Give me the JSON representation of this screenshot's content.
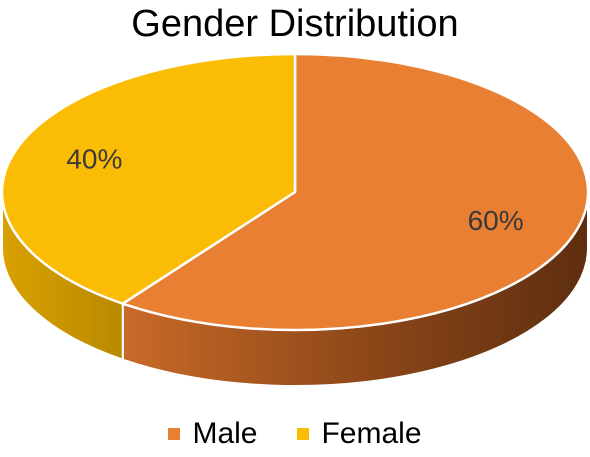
{
  "chart_data": {
    "type": "pie",
    "title": "Gender Distribution",
    "style": "3d",
    "legend_position": "bottom",
    "categories": [
      "Male",
      "Female"
    ],
    "values": [
      60,
      40
    ],
    "labels": [
      "60%",
      "40%"
    ],
    "colors": [
      "#E97F32",
      "#FBBC05"
    ]
  }
}
